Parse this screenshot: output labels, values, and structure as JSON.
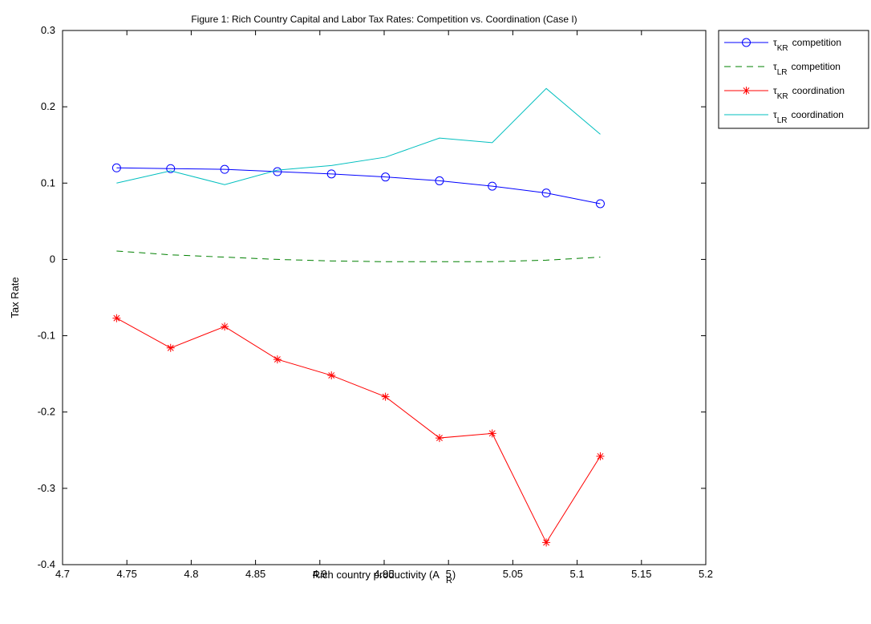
{
  "chart_data": {
    "type": "line",
    "title": "Figure 1: Rich Country Capital and Labor Tax Rates: Competition vs. Coordination (Case I)",
    "xlabel_main": "Rich country productivity (A",
    "xlabel_sub": "R",
    "xlabel_close": ")",
    "ylabel": "Tax Rate",
    "xlim": [
      4.7,
      5.2
    ],
    "ylim": [
      -0.4,
      0.3
    ],
    "x_ticks": [
      "4.7",
      "4.75",
      "4.8",
      "4.85",
      "4.9",
      "4.95",
      "5",
      "5.05",
      "5.1",
      "5.15",
      "5.2"
    ],
    "y_ticks": [
      "-0.4",
      "-0.3",
      "-0.2",
      "-0.1",
      "0",
      "0.1",
      "0.2",
      "0.3"
    ],
    "grid": false,
    "legend_position": "outside-top-right",
    "x": [
      4.742,
      4.784,
      4.826,
      4.867,
      4.909,
      4.951,
      4.993,
      5.034,
      5.076,
      5.118
    ],
    "series": [
      {
        "tau": "τ",
        "sub": "KR",
        "label": "competition",
        "color": "#0000ff",
        "dash": "",
        "marker": "circle",
        "values": [
          0.12,
          0.119,
          0.118,
          0.115,
          0.112,
          0.108,
          0.103,
          0.096,
          0.087,
          0.073
        ]
      },
      {
        "tau": "τ",
        "sub": "LR",
        "label": "competition",
        "color": "#008000",
        "dash": "8,6",
        "marker": "none",
        "values": [
          0.011,
          0.006,
          0.003,
          0.0,
          -0.002,
          -0.003,
          -0.003,
          -0.003,
          -0.001,
          0.003
        ]
      },
      {
        "tau": "τ",
        "sub": "KR",
        "label": "coordination",
        "color": "#ff0000",
        "dash": "",
        "marker": "star",
        "values": [
          -0.077,
          -0.116,
          -0.088,
          -0.131,
          -0.152,
          -0.18,
          -0.234,
          -0.228,
          -0.371,
          -0.258
        ]
      },
      {
        "tau": "τ",
        "sub": "LR",
        "label": "coordination",
        "color": "#00bfbf",
        "dash": "",
        "marker": "none",
        "values": [
          0.1,
          0.116,
          0.098,
          0.117,
          0.123,
          0.134,
          0.159,
          0.153,
          0.224,
          0.164
        ]
      }
    ]
  }
}
